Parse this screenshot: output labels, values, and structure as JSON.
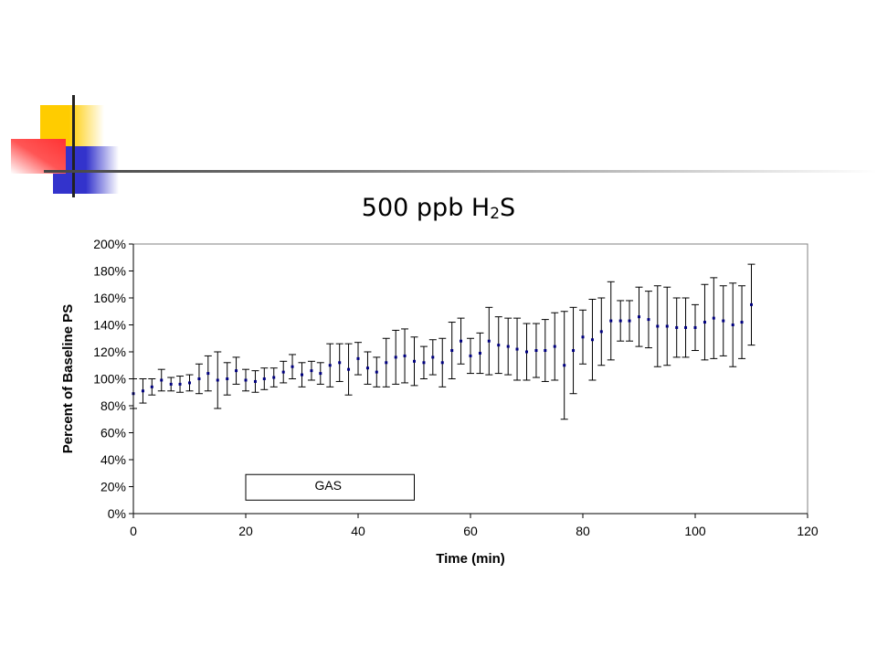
{
  "title": {
    "main": "500 ppb H",
    "sub": "2",
    "tail": "S"
  },
  "colors": {
    "marker": "#000080",
    "errorbar": "#000000",
    "deco_yellow": "#ffcc00",
    "deco_blue": "#3333cc",
    "deco_red": "#ff3333"
  },
  "chart_data": {
    "type": "scatter",
    "title": "500 ppb H2S",
    "xlabel": "Time (min)",
    "ylabel": "Percent of Baseline PS",
    "xlim": [
      0,
      120
    ],
    "ylim": [
      0,
      200
    ],
    "x_ticks": [
      "0",
      "20",
      "40",
      "60",
      "80",
      "100",
      "120"
    ],
    "y_ticks": [
      "0%",
      "20%",
      "40%",
      "60%",
      "80%",
      "100%",
      "120%",
      "140%",
      "160%",
      "180%",
      "200%"
    ],
    "grid": false,
    "annotation": {
      "text": "GAS",
      "x_start": 20,
      "x_end": 50,
      "y_bottom": 10,
      "y_top": 29
    },
    "series": [
      {
        "x": [
          0,
          1.7,
          3.3,
          5,
          6.7,
          8.3,
          10,
          11.7,
          13.3,
          15,
          16.7,
          18.3,
          20,
          21.7,
          23.3,
          25,
          26.7,
          28.3,
          30,
          31.7,
          33.3,
          35,
          36.7,
          38.3,
          40,
          41.7,
          43.3,
          45,
          46.7,
          48.3,
          50,
          51.7,
          53.3,
          55,
          56.7,
          58.3,
          60,
          61.7,
          63.3,
          65,
          66.7,
          68.3,
          70,
          71.7,
          73.3,
          75,
          76.7,
          78.3,
          80,
          81.7,
          83.3,
          85,
          86.7,
          88.3,
          90,
          91.7,
          93.3,
          95,
          96.7,
          98.3,
          100,
          101.7,
          103.3,
          105,
          106.7,
          108.3,
          110
        ],
        "y": [
          89,
          91,
          94,
          99,
          96,
          96,
          97,
          100,
          104,
          99,
          100,
          106,
          99,
          98,
          100,
          101,
          105,
          109,
          103,
          106,
          104,
          110,
          112,
          107,
          115,
          108,
          105,
          112,
          116,
          117,
          113,
          112,
          116,
          112,
          121,
          128,
          117,
          119,
          128,
          125,
          124,
          122,
          120,
          121,
          121,
          124,
          110,
          121,
          131,
          129,
          135,
          143,
          143,
          143,
          146,
          144,
          139,
          139,
          138,
          138,
          138,
          142,
          145,
          143,
          140,
          142,
          155
        ],
        "error": [
          11,
          9,
          6,
          8,
          5,
          6,
          6,
          11,
          13,
          21,
          12,
          10,
          8,
          8,
          8,
          7,
          8,
          9,
          9,
          7,
          8,
          16,
          14,
          19,
          12,
          12,
          11,
          18,
          20,
          20,
          18,
          12,
          13,
          18,
          21,
          17,
          13,
          15,
          25,
          21,
          21,
          23,
          21,
          20,
          23,
          25,
          40,
          32,
          20,
          30,
          25,
          29,
          15,
          15,
          22,
          21,
          30,
          29,
          22,
          22,
          17,
          28,
          30,
          26,
          31,
          27,
          30
        ]
      }
    ]
  }
}
